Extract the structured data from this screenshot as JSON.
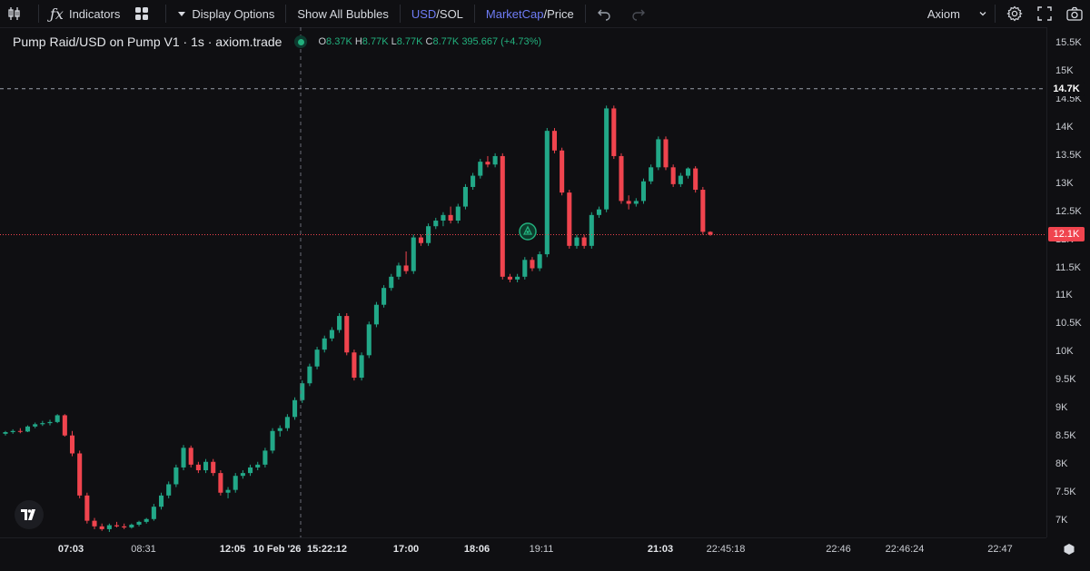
{
  "toolbar": {
    "indicators_label": "Indicators",
    "display_options_label": "Display Options",
    "show_all_bubbles_label": "Show All Bubbles",
    "usd_label": "USD",
    "sol_label": "/SOL",
    "marketcap_label": "MarketCap",
    "price_label": "/Price",
    "account_label": "Axiom"
  },
  "legend": {
    "title": "Pump Raid/USD on Pump V1 · 1s · axiom.trade",
    "o_key": "O",
    "o_val": "8.37K",
    "h_key": "H",
    "h_val": "8.77K",
    "l_key": "L",
    "l_val": "8.77K",
    "c_key": "C",
    "c_val": "8.77K",
    "change": "395.667 (+4.73%)"
  },
  "price_axis": {
    "ticks": [
      "15.5K",
      "15K",
      "14.5K",
      "14K",
      "13.5K",
      "13K",
      "12.5K",
      "12K",
      "11.5K",
      "11K",
      "10.5K",
      "10K",
      "9.5K",
      "9K",
      "8.5K",
      "8K",
      "7.5K",
      "7K"
    ],
    "crosshair_tag": "14.7K",
    "last_price_tag": "12.1K"
  },
  "time_axis": {
    "labels": [
      "07:03",
      "08:31",
      "12:05",
      "10 Feb '26",
      "15:22:12",
      "17:00",
      "18:06",
      "19:11",
      "21:03",
      "22:45:18",
      "22:46",
      "22:46:24",
      "22:47"
    ]
  },
  "colors": {
    "up": "#22a888",
    "down": "#f0444e",
    "accent": "#6e7cf5"
  },
  "chart_data": {
    "type": "candlestick",
    "title": "Pump Raid/USD on Pump V1 · 1s · axiom.trade",
    "ylim": [
      6800,
      15700
    ],
    "crosshair_price": 14700,
    "last_price": 12100,
    "candles": [
      {
        "o": 8550,
        "h": 8600,
        "l": 8520,
        "c": 8580
      },
      {
        "o": 8580,
        "h": 8630,
        "l": 8550,
        "c": 8600
      },
      {
        "o": 8600,
        "h": 8650,
        "l": 8560,
        "c": 8590
      },
      {
        "o": 8590,
        "h": 8700,
        "l": 8580,
        "c": 8680
      },
      {
        "o": 8680,
        "h": 8750,
        "l": 8650,
        "c": 8720
      },
      {
        "o": 8720,
        "h": 8780,
        "l": 8690,
        "c": 8740
      },
      {
        "o": 8740,
        "h": 8800,
        "l": 8700,
        "c": 8760
      },
      {
        "o": 8760,
        "h": 8900,
        "l": 8740,
        "c": 8880
      },
      {
        "o": 8880,
        "h": 8900,
        "l": 8500,
        "c": 8520
      },
      {
        "o": 8520,
        "h": 8600,
        "l": 8150,
        "c": 8200
      },
      {
        "o": 8200,
        "h": 8250,
        "l": 7400,
        "c": 7450
      },
      {
        "o": 7450,
        "h": 7500,
        "l": 6950,
        "c": 7000
      },
      {
        "o": 7000,
        "h": 7050,
        "l": 6850,
        "c": 6900
      },
      {
        "o": 6900,
        "h": 6950,
        "l": 6820,
        "c": 6850
      },
      {
        "o": 6850,
        "h": 6950,
        "l": 6800,
        "c": 6920
      },
      {
        "o": 6920,
        "h": 6980,
        "l": 6880,
        "c": 6900
      },
      {
        "o": 6900,
        "h": 6950,
        "l": 6850,
        "c": 6880
      },
      {
        "o": 6880,
        "h": 6950,
        "l": 6860,
        "c": 6930
      },
      {
        "o": 6930,
        "h": 7000,
        "l": 6900,
        "c": 6980
      },
      {
        "o": 6980,
        "h": 7050,
        "l": 6950,
        "c": 7030
      },
      {
        "o": 7030,
        "h": 7300,
        "l": 7000,
        "c": 7250
      },
      {
        "o": 7250,
        "h": 7500,
        "l": 7200,
        "c": 7450
      },
      {
        "o": 7450,
        "h": 7700,
        "l": 7400,
        "c": 7650
      },
      {
        "o": 7650,
        "h": 8000,
        "l": 7600,
        "c": 7950
      },
      {
        "o": 7950,
        "h": 8350,
        "l": 7900,
        "c": 8300
      },
      {
        "o": 8300,
        "h": 8340,
        "l": 7950,
        "c": 8000
      },
      {
        "o": 8000,
        "h": 8050,
        "l": 7850,
        "c": 7900
      },
      {
        "o": 7900,
        "h": 8100,
        "l": 7850,
        "c": 8050
      },
      {
        "o": 8050,
        "h": 8100,
        "l": 7800,
        "c": 7850
      },
      {
        "o": 7850,
        "h": 7900,
        "l": 7450,
        "c": 7500
      },
      {
        "o": 7500,
        "h": 7600,
        "l": 7400,
        "c": 7550
      },
      {
        "o": 7550,
        "h": 7850,
        "l": 7500,
        "c": 7800
      },
      {
        "o": 7800,
        "h": 7900,
        "l": 7750,
        "c": 7850
      },
      {
        "o": 7850,
        "h": 8000,
        "l": 7800,
        "c": 7950
      },
      {
        "o": 7950,
        "h": 8050,
        "l": 7900,
        "c": 8000
      },
      {
        "o": 8000,
        "h": 8300,
        "l": 7950,
        "c": 8250
      },
      {
        "o": 8250,
        "h": 8650,
        "l": 8200,
        "c": 8600
      },
      {
        "o": 8600,
        "h": 8700,
        "l": 8500,
        "c": 8650
      },
      {
        "o": 8650,
        "h": 8900,
        "l": 8600,
        "c": 8850
      },
      {
        "o": 8850,
        "h": 9200,
        "l": 8800,
        "c": 9150
      },
      {
        "o": 9150,
        "h": 9500,
        "l": 9100,
        "c": 9450
      },
      {
        "o": 9450,
        "h": 9800,
        "l": 9400,
        "c": 9750
      },
      {
        "o": 9750,
        "h": 10100,
        "l": 9700,
        "c": 10050
      },
      {
        "o": 10050,
        "h": 10300,
        "l": 10000,
        "c": 10250
      },
      {
        "o": 10250,
        "h": 10450,
        "l": 10200,
        "c": 10400
      },
      {
        "o": 10400,
        "h": 10700,
        "l": 10350,
        "c": 10650
      },
      {
        "o": 10650,
        "h": 10700,
        "l": 9950,
        "c": 10000
      },
      {
        "o": 10000,
        "h": 10050,
        "l": 9500,
        "c": 9550
      },
      {
        "o": 9550,
        "h": 10000,
        "l": 9500,
        "c": 9950
      },
      {
        "o": 9950,
        "h": 10550,
        "l": 9900,
        "c": 10500
      },
      {
        "o": 10500,
        "h": 10900,
        "l": 10450,
        "c": 10850
      },
      {
        "o": 10850,
        "h": 11200,
        "l": 10800,
        "c": 11150
      },
      {
        "o": 11150,
        "h": 11400,
        "l": 11100,
        "c": 11350
      },
      {
        "o": 11350,
        "h": 11600,
        "l": 11300,
        "c": 11550
      },
      {
        "o": 11550,
        "h": 11800,
        "l": 11400,
        "c": 11450
      },
      {
        "o": 11450,
        "h": 12100,
        "l": 11400,
        "c": 12050
      },
      {
        "o": 12050,
        "h": 12100,
        "l": 11900,
        "c": 11950
      },
      {
        "o": 11950,
        "h": 12300,
        "l": 11900,
        "c": 12250
      },
      {
        "o": 12250,
        "h": 12400,
        "l": 12200,
        "c": 12350
      },
      {
        "o": 12350,
        "h": 12500,
        "l": 12250,
        "c": 12450
      },
      {
        "o": 12450,
        "h": 12600,
        "l": 12300,
        "c": 12350
      },
      {
        "o": 12350,
        "h": 12650,
        "l": 12300,
        "c": 12600
      },
      {
        "o": 12600,
        "h": 13000,
        "l": 12550,
        "c": 12950
      },
      {
        "o": 12950,
        "h": 13200,
        "l": 12900,
        "c": 13150
      },
      {
        "o": 13150,
        "h": 13450,
        "l": 13100,
        "c": 13400
      },
      {
        "o": 13400,
        "h": 13500,
        "l": 13300,
        "c": 13350
      },
      {
        "o": 13350,
        "h": 13550,
        "l": 13300,
        "c": 13500
      },
      {
        "o": 13500,
        "h": 13550,
        "l": 11300,
        "c": 11350
      },
      {
        "o": 11350,
        "h": 11400,
        "l": 11250,
        "c": 11300
      },
      {
        "o": 11300,
        "h": 11400,
        "l": 11250,
        "c": 11350
      },
      {
        "o": 11350,
        "h": 11700,
        "l": 11300,
        "c": 11650
      },
      {
        "o": 11650,
        "h": 11700,
        "l": 11450,
        "c": 11500
      },
      {
        "o": 11500,
        "h": 11800,
        "l": 11450,
        "c": 11750
      },
      {
        "o": 11750,
        "h": 14000,
        "l": 11700,
        "c": 13950
      },
      {
        "o": 13950,
        "h": 14000,
        "l": 13550,
        "c": 13600
      },
      {
        "o": 13600,
        "h": 13650,
        "l": 12800,
        "c": 12850
      },
      {
        "o": 12850,
        "h": 12900,
        "l": 11850,
        "c": 11900
      },
      {
        "o": 11900,
        "h": 12100,
        "l": 11850,
        "c": 12050
      },
      {
        "o": 12050,
        "h": 12100,
        "l": 11850,
        "c": 11900
      },
      {
        "o": 11900,
        "h": 12500,
        "l": 11850,
        "c": 12450
      },
      {
        "o": 12450,
        "h": 12600,
        "l": 12400,
        "c": 12550
      },
      {
        "o": 12550,
        "h": 14400,
        "l": 12500,
        "c": 14350
      },
      {
        "o": 14350,
        "h": 14400,
        "l": 13450,
        "c": 13500
      },
      {
        "o": 13500,
        "h": 13550,
        "l": 12650,
        "c": 12700
      },
      {
        "o": 12700,
        "h": 12800,
        "l": 12550,
        "c": 12650
      },
      {
        "o": 12650,
        "h": 12750,
        "l": 12600,
        "c": 12700
      },
      {
        "o": 12700,
        "h": 13100,
        "l": 12650,
        "c": 13050
      },
      {
        "o": 13050,
        "h": 13350,
        "l": 13000,
        "c": 13300
      },
      {
        "o": 13300,
        "h": 13850,
        "l": 13250,
        "c": 13800
      },
      {
        "o": 13800,
        "h": 13850,
        "l": 13250,
        "c": 13300
      },
      {
        "o": 13300,
        "h": 13350,
        "l": 12950,
        "c": 13000
      },
      {
        "o": 13000,
        "h": 13200,
        "l": 12950,
        "c": 13150
      },
      {
        "o": 13150,
        "h": 13300,
        "l": 13100,
        "c": 13280
      },
      {
        "o": 13280,
        "h": 13320,
        "l": 12850,
        "c": 12900
      },
      {
        "o": 12900,
        "h": 12950,
        "l": 12100,
        "c": 12150
      },
      {
        "o": 12150,
        "h": 12160,
        "l": 12080,
        "c": 12100
      }
    ]
  }
}
